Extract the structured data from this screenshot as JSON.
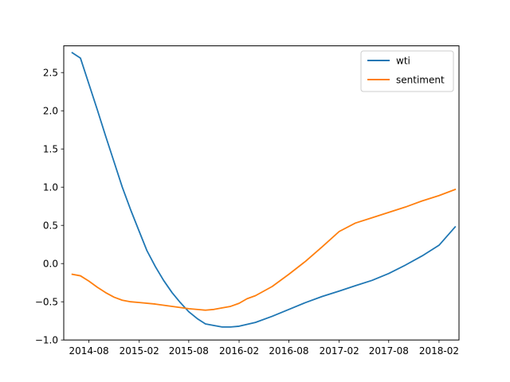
{
  "chart_data": {
    "type": "line",
    "title": "",
    "xlabel": "",
    "ylabel": "",
    "xlim": [
      "2014-05-01",
      "2018-04-15"
    ],
    "ylim": [
      -1.0,
      2.85
    ],
    "x_ticks": [
      "2014-08",
      "2015-02",
      "2015-08",
      "2016-02",
      "2016-08",
      "2017-02",
      "2017-08",
      "2018-02"
    ],
    "y_ticks": [
      "2.5",
      "2.0",
      "1.5",
      "1.0",
      "0.5",
      "0.0",
      "−0.5",
      "−1.0"
    ],
    "y_tick_values": [
      2.5,
      2.0,
      1.5,
      1.0,
      0.5,
      0.0,
      -0.5,
      -1.0
    ],
    "legend": {
      "position": "top-right"
    },
    "series": [
      {
        "name": "wti",
        "color": "#1f77b4",
        "points": [
          [
            "2014-06-01",
            2.76
          ],
          [
            "2014-07-01",
            2.69
          ],
          [
            "2014-08-01",
            2.35
          ],
          [
            "2014-09-01",
            2.01
          ],
          [
            "2014-10-01",
            1.67
          ],
          [
            "2014-11-01",
            1.33
          ],
          [
            "2014-12-01",
            1.0
          ],
          [
            "2015-01-01",
            0.7
          ],
          [
            "2015-02-01",
            0.42
          ],
          [
            "2015-03-01",
            0.17
          ],
          [
            "2015-04-01",
            -0.04
          ],
          [
            "2015-05-01",
            -0.22
          ],
          [
            "2015-06-01",
            -0.38
          ],
          [
            "2015-07-01",
            -0.51
          ],
          [
            "2015-08-01",
            -0.63
          ],
          [
            "2015-09-01",
            -0.72
          ],
          [
            "2015-10-01",
            -0.79
          ],
          [
            "2015-11-01",
            -0.81
          ],
          [
            "2015-12-01",
            -0.83
          ],
          [
            "2016-01-01",
            -0.83
          ],
          [
            "2016-02-01",
            -0.82
          ],
          [
            "2016-04-01",
            -0.77
          ],
          [
            "2016-06-01",
            -0.69
          ],
          [
            "2016-08-01",
            -0.6
          ],
          [
            "2016-10-01",
            -0.51
          ],
          [
            "2016-12-01",
            -0.43
          ],
          [
            "2017-02-01",
            -0.36
          ],
          [
            "2017-04-01",
            -0.29
          ],
          [
            "2017-06-01",
            -0.22
          ],
          [
            "2017-08-01",
            -0.13
          ],
          [
            "2017-10-01",
            -0.02
          ],
          [
            "2017-12-01",
            0.1
          ],
          [
            "2018-02-01",
            0.24
          ],
          [
            "2018-04-01",
            0.48
          ]
        ]
      },
      {
        "name": "sentiment",
        "color": "#ff7f0e",
        "points": [
          [
            "2014-06-01",
            -0.14
          ],
          [
            "2014-07-01",
            -0.16
          ],
          [
            "2014-08-01",
            -0.23
          ],
          [
            "2014-09-01",
            -0.31
          ],
          [
            "2014-10-01",
            -0.38
          ],
          [
            "2014-11-01",
            -0.44
          ],
          [
            "2014-12-01",
            -0.48
          ],
          [
            "2015-01-01",
            -0.5
          ],
          [
            "2015-02-01",
            -0.51
          ],
          [
            "2015-04-01",
            -0.53
          ],
          [
            "2015-06-01",
            -0.56
          ],
          [
            "2015-08-01",
            -0.59
          ],
          [
            "2015-10-01",
            -0.61
          ],
          [
            "2015-11-01",
            -0.6
          ],
          [
            "2015-12-01",
            -0.58
          ],
          [
            "2016-01-01",
            -0.56
          ],
          [
            "2016-02-01",
            -0.52
          ],
          [
            "2016-03-01",
            -0.46
          ],
          [
            "2016-04-01",
            -0.42
          ],
          [
            "2016-06-01",
            -0.3
          ],
          [
            "2016-08-01",
            -0.14
          ],
          [
            "2016-10-01",
            0.03
          ],
          [
            "2016-12-01",
            0.22
          ],
          [
            "2017-02-01",
            0.42
          ],
          [
            "2017-04-01",
            0.53
          ],
          [
            "2017-06-01",
            0.6
          ],
          [
            "2017-08-01",
            0.67
          ],
          [
            "2017-10-01",
            0.74
          ],
          [
            "2017-12-01",
            0.82
          ],
          [
            "2018-02-01",
            0.89
          ],
          [
            "2018-04-01",
            0.97
          ]
        ]
      }
    ]
  }
}
